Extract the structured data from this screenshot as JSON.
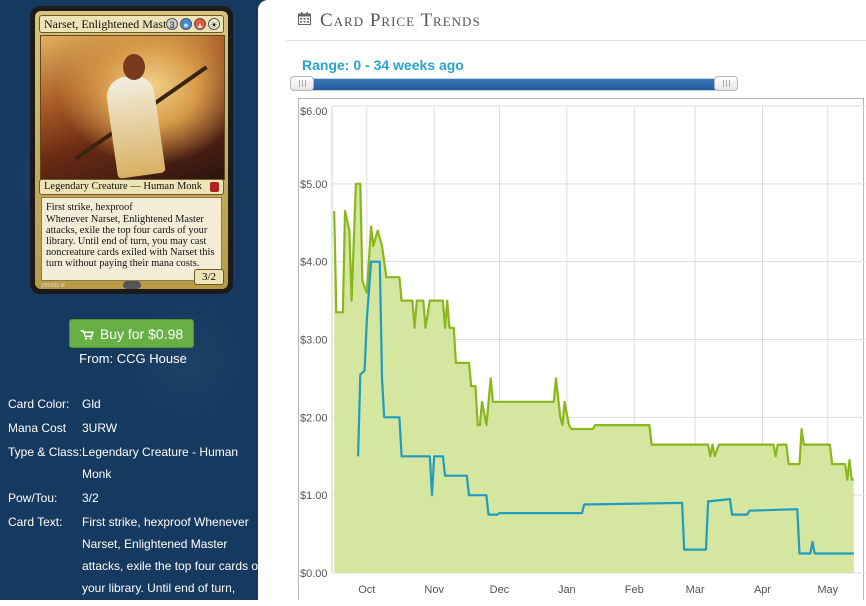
{
  "card": {
    "name": "Narset, Enlightened Master",
    "mana_symbols": [
      {
        "symbol": "3",
        "color": "#cfcfcf"
      },
      {
        "symbol": "U",
        "color": "#3d8fd1"
      },
      {
        "symbol": "R",
        "color": "#e05a3b"
      },
      {
        "symbol": "W",
        "color": "#f4f0d8"
      }
    ],
    "type_line": "Legendary Creature — Human Monk",
    "rules_text": "First strike, hexproof\nWhenever Narset, Enlightened Master attacks, exile the top four cards of your library. Until end of turn, you may cast noncreature cards exiled with Narset this turn without paying their mana costs.",
    "power_toughness": "3/2",
    "collector_number": "190/269 M"
  },
  "buy_button": {
    "label": "Buy for $0.98",
    "icon": "cart-icon",
    "color": "#68b045"
  },
  "from_text": "From: CCG House",
  "details": [
    {
      "label": "Card Color:",
      "value": "Gld"
    },
    {
      "label": "Mana Cost",
      "value": "3URW"
    },
    {
      "label": "Type & Class:",
      "value": "Legendary Creature - Human Monk"
    },
    {
      "label": "Pow/Tou:",
      "value": "3/2"
    },
    {
      "label": "Card Text:",
      "value": "First strike, hexproof Whenever Narset, Enlightened Master attacks, exile the top four cards of your library. Until end of turn,"
    }
  ],
  "section": {
    "title": "Card Price Trends",
    "icon": "calendar-icon"
  },
  "range_label": "Range: 0 - 34 weeks ago",
  "slider": {
    "min_weeks_ago": 0,
    "max_weeks_ago": 34
  },
  "colors": {
    "sidebar_bg": "#16395f",
    "accent": "#2aa3c9",
    "series_green": "#8ab71c",
    "series_fill": "#d4e6a0",
    "series_blue": "#1f9cbf"
  },
  "chart_data": {
    "type": "area",
    "x_tick_labels": [
      "Oct",
      "Nov",
      "Dec",
      "Jan",
      "Feb",
      "Mar",
      "Apr",
      "May"
    ],
    "y_tick_labels": [
      "$0.00",
      "$1.00",
      "$2.00",
      "$3.00",
      "$4.00",
      "$5.00",
      "$6.00"
    ],
    "ylim": [
      0,
      6
    ],
    "grid": true,
    "series": [
      {
        "color": "#8ab71c",
        "fill": true,
        "points": [
          [
            "2014-09-16",
            4.65
          ],
          [
            "2014-09-17",
            3.35
          ],
          [
            "2014-09-20",
            3.35
          ],
          [
            "2014-09-21",
            4.65
          ],
          [
            "2014-09-23",
            4.4
          ],
          [
            "2014-09-24",
            3.5
          ],
          [
            "2014-09-26",
            5.0
          ],
          [
            "2014-09-28",
            5.0
          ],
          [
            "2014-09-29",
            3.75
          ],
          [
            "2014-10-01",
            3.6
          ],
          [
            "2014-10-03",
            4.45
          ],
          [
            "2014-10-04",
            4.2
          ],
          [
            "2014-10-06",
            4.4
          ],
          [
            "2014-10-08",
            4.2
          ],
          [
            "2014-10-10",
            3.8
          ],
          [
            "2014-10-16",
            3.8
          ],
          [
            "2014-10-17",
            3.5
          ],
          [
            "2014-10-22",
            3.5
          ],
          [
            "2014-10-23",
            3.15
          ],
          [
            "2014-10-24",
            3.5
          ],
          [
            "2014-10-27",
            3.5
          ],
          [
            "2014-10-28",
            3.15
          ],
          [
            "2014-10-30",
            3.5
          ],
          [
            "2014-11-05",
            3.5
          ],
          [
            "2014-11-06",
            3.15
          ],
          [
            "2014-11-07",
            3.5
          ],
          [
            "2014-11-08",
            3.15
          ],
          [
            "2014-11-10",
            3.15
          ],
          [
            "2014-11-11",
            2.7
          ],
          [
            "2014-11-17",
            2.7
          ],
          [
            "2014-11-18",
            2.4
          ],
          [
            "2014-11-20",
            2.4
          ],
          [
            "2014-11-21",
            1.9
          ],
          [
            "2014-11-22",
            1.9
          ],
          [
            "2014-11-23",
            2.2
          ],
          [
            "2014-11-25",
            1.9
          ],
          [
            "2014-11-27",
            2.5
          ],
          [
            "2014-11-28",
            2.2
          ],
          [
            "2014-12-26",
            2.2
          ],
          [
            "2014-12-27",
            2.5
          ],
          [
            "2014-12-29",
            2.0
          ],
          [
            "2014-12-30",
            1.9
          ],
          [
            "2014-12-31",
            2.2
          ],
          [
            "2015-01-02",
            1.9
          ],
          [
            "2015-01-03",
            1.85
          ],
          [
            "2015-01-13",
            1.85
          ],
          [
            "2015-01-14",
            1.9
          ],
          [
            "2015-02-08",
            1.9
          ],
          [
            "2015-02-09",
            1.65
          ],
          [
            "2015-03-07",
            1.65
          ],
          [
            "2015-03-08",
            1.5
          ],
          [
            "2015-03-09",
            1.65
          ],
          [
            "2015-03-10",
            1.5
          ],
          [
            "2015-03-12",
            1.65
          ],
          [
            "2015-04-06",
            1.65
          ],
          [
            "2015-04-07",
            1.5
          ],
          [
            "2015-04-08",
            1.65
          ],
          [
            "2015-04-12",
            1.65
          ],
          [
            "2015-04-13",
            1.4
          ],
          [
            "2015-04-18",
            1.4
          ],
          [
            "2015-04-19",
            1.85
          ],
          [
            "2015-04-20",
            1.65
          ],
          [
            "2015-05-02",
            1.65
          ],
          [
            "2015-05-03",
            1.4
          ],
          [
            "2015-05-09",
            1.4
          ],
          [
            "2015-05-10",
            1.2
          ],
          [
            "2015-05-11",
            1.45
          ],
          [
            "2015-05-12",
            1.2
          ],
          [
            "2015-05-13",
            1.2
          ]
        ]
      },
      {
        "color": "#1f9cbf",
        "fill": false,
        "points": [
          [
            "2014-09-27",
            1.5
          ],
          [
            "2014-09-28",
            2.55
          ],
          [
            "2014-09-30",
            2.6
          ],
          [
            "2014-10-01",
            3.25
          ],
          [
            "2014-10-03",
            4.0
          ],
          [
            "2014-10-07",
            4.0
          ],
          [
            "2014-10-08",
            2.5
          ],
          [
            "2014-10-09",
            2.0
          ],
          [
            "2014-10-16",
            2.0
          ],
          [
            "2014-10-17",
            1.5
          ],
          [
            "2014-10-30",
            1.5
          ],
          [
            "2014-10-31",
            1.0
          ],
          [
            "2014-11-01",
            1.5
          ],
          [
            "2014-11-05",
            1.5
          ],
          [
            "2014-11-06",
            1.25
          ],
          [
            "2014-11-16",
            1.25
          ],
          [
            "2014-11-17",
            1.0
          ],
          [
            "2014-11-25",
            1.0
          ],
          [
            "2014-11-26",
            0.75
          ],
          [
            "2014-11-30",
            0.75
          ],
          [
            "2014-12-01",
            0.77
          ],
          [
            "2015-01-08",
            0.77
          ],
          [
            "2015-01-09",
            0.88
          ],
          [
            "2015-02-23",
            0.9
          ],
          [
            "2015-02-24",
            0.3
          ],
          [
            "2015-03-06",
            0.3
          ],
          [
            "2015-03-07",
            0.92
          ],
          [
            "2015-03-17",
            0.95
          ],
          [
            "2015-03-18",
            0.75
          ],
          [
            "2015-03-25",
            0.75
          ],
          [
            "2015-03-26",
            0.8
          ],
          [
            "2015-04-17",
            0.82
          ],
          [
            "2015-04-18",
            0.25
          ],
          [
            "2015-04-23",
            0.25
          ],
          [
            "2015-04-24",
            0.4
          ],
          [
            "2015-04-25",
            0.25
          ],
          [
            "2015-05-13",
            0.25
          ]
        ]
      }
    ]
  }
}
